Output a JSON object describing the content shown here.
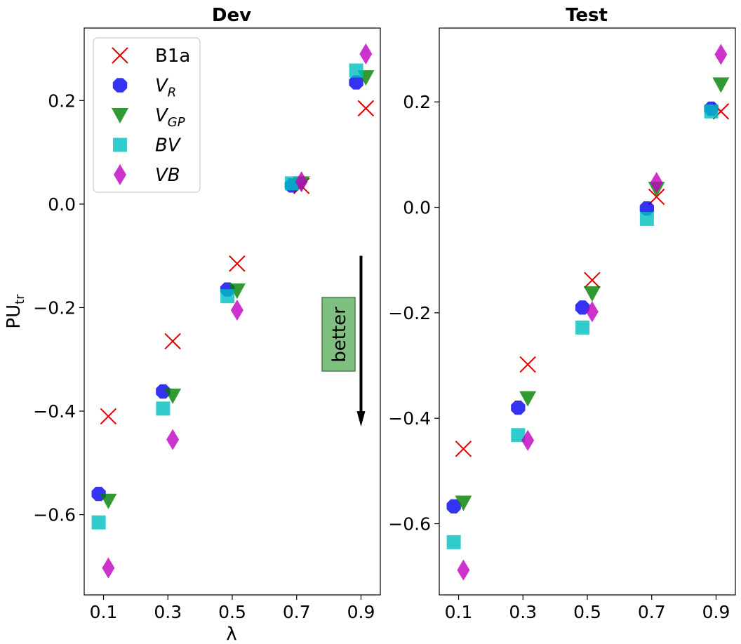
{
  "chart_data": [
    {
      "type": "scatter",
      "title": "Dev",
      "xlabel": "λ",
      "ylabel_main": "PU",
      "ylabel_sub": "tr",
      "xticks": [
        0.1,
        0.3,
        0.5,
        0.7,
        0.9
      ],
      "xtick_labels": [
        "0.1",
        "0.3",
        "0.5",
        "0.7",
        "0.9"
      ],
      "yticks": [
        0.2,
        0.0,
        -0.2,
        -0.4,
        -0.6
      ],
      "ytick_labels": [
        "0.2",
        "0.0",
        "−0.2",
        "−0.4",
        "−0.6"
      ],
      "xlim": [
        0.04,
        0.96
      ],
      "ylim": [
        -0.755,
        0.34
      ],
      "series": [
        {
          "name": "B1a",
          "marker": "x",
          "color": "#dd0000",
          "x": [
            0.115,
            0.315,
            0.515,
            0.715,
            0.915
          ],
          "y": [
            -0.41,
            -0.265,
            -0.115,
            0.035,
            0.185
          ]
        },
        {
          "name": "V_R",
          "marker": "octagon",
          "color": "#0000ee",
          "x": [
            0.085,
            0.285,
            0.485,
            0.685,
            0.885
          ],
          "y": [
            -0.56,
            -0.362,
            -0.165,
            0.036,
            0.235
          ]
        },
        {
          "name": "V_GP",
          "marker": "triangle-down",
          "color": "#008000",
          "x": [
            0.115,
            0.315,
            0.515,
            0.715,
            0.915
          ],
          "y": [
            -0.573,
            -0.37,
            -0.167,
            0.04,
            0.245
          ]
        },
        {
          "name": "BV",
          "marker": "square",
          "color": "#00bfbf",
          "x": [
            0.085,
            0.285,
            0.485,
            0.685,
            0.885
          ],
          "y": [
            -0.615,
            -0.395,
            -0.178,
            0.04,
            0.258
          ]
        },
        {
          "name": "VB",
          "marker": "diamond",
          "color": "#bf00bf",
          "x": [
            0.115,
            0.315,
            0.515,
            0.715,
            0.915
          ],
          "y": [
            -0.703,
            -0.455,
            -0.205,
            0.043,
            0.29
          ]
        }
      ],
      "annotation": {
        "text": "better",
        "arrow_x": 0.9,
        "arrow_from_y": -0.1,
        "arrow_to_y": -0.43,
        "box_color": "#7fbf7f"
      }
    },
    {
      "type": "scatter",
      "title": "Test",
      "xticks": [
        0.1,
        0.3,
        0.5,
        0.7,
        0.9
      ],
      "xtick_labels": [
        "0.1",
        "0.3",
        "0.5",
        "0.7",
        "0.9"
      ],
      "yticks": [
        0.2,
        0.0,
        -0.2,
        -0.4,
        -0.6
      ],
      "ytick_labels": [
        "0.2",
        "0.0",
        "−0.2",
        "−0.4",
        "−0.6"
      ],
      "xlim": [
        0.04,
        0.96
      ],
      "ylim": [
        -0.735,
        0.34
      ],
      "series": [
        {
          "name": "B1a",
          "marker": "x",
          "color": "#dd0000",
          "x": [
            0.115,
            0.315,
            0.515,
            0.715,
            0.915
          ],
          "y": [
            -0.458,
            -0.298,
            -0.138,
            0.02,
            0.182
          ]
        },
        {
          "name": "V_R",
          "marker": "octagon",
          "color": "#0000ee",
          "x": [
            0.085,
            0.285,
            0.485,
            0.685,
            0.885
          ],
          "y": [
            -0.567,
            -0.38,
            -0.19,
            -0.002,
            0.187
          ]
        },
        {
          "name": "V_GP",
          "marker": "triangle-down",
          "color": "#008000",
          "x": [
            0.115,
            0.315,
            0.515,
            0.715,
            0.915
          ],
          "y": [
            -0.56,
            -0.362,
            -0.163,
            0.035,
            0.233
          ]
        },
        {
          "name": "BV",
          "marker": "square",
          "color": "#00bfbf",
          "x": [
            0.085,
            0.285,
            0.485,
            0.685,
            0.885
          ],
          "y": [
            -0.635,
            -0.432,
            -0.228,
            -0.022,
            0.182
          ]
        },
        {
          "name": "VB",
          "marker": "diamond",
          "color": "#bf00bf",
          "x": [
            0.115,
            0.315,
            0.515,
            0.715,
            0.915
          ],
          "y": [
            -0.688,
            -0.442,
            -0.198,
            0.047,
            0.29
          ]
        }
      ]
    }
  ],
  "legend": {
    "placement": "top-left of Dev panel",
    "entries": [
      {
        "marker": "x",
        "color": "#dd0000",
        "main": "B1a",
        "sub": "",
        "italic": false
      },
      {
        "marker": "octagon",
        "color": "#0000ee",
        "main": "V",
        "sub": "R",
        "italic": true
      },
      {
        "marker": "triangle-down",
        "color": "#008000",
        "main": "V",
        "sub": "GP",
        "italic": true
      },
      {
        "marker": "square",
        "color": "#00bfbf",
        "main": "BV",
        "sub": "",
        "italic": true
      },
      {
        "marker": "diamond",
        "color": "#bf00bf",
        "main": "VB",
        "sub": "",
        "italic": true
      }
    ]
  }
}
